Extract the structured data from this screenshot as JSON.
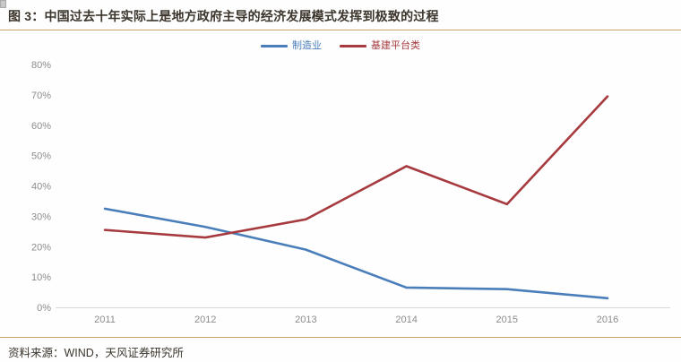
{
  "page": {
    "title": "图 3：中国过去十年实际上是地方政府主导的经济发展模式发挥到极致的过程",
    "source_note": "资料来源：WIND，天风证券研究所"
  },
  "colors": {
    "accent_rule": "#c9a469",
    "title_text": "#3b352c",
    "axis_text": "#8c8c8c",
    "axis_line": "#d8d8d8",
    "background": "#fefefe"
  },
  "chart_data": {
    "type": "line",
    "title": "",
    "xlabel": "",
    "ylabel": "",
    "categories": [
      "2011",
      "2012",
      "2013",
      "2014",
      "2015",
      "2016"
    ],
    "series": [
      {
        "name": "制造业",
        "color": "#4a7ebb",
        "values": [
          32.5,
          26.5,
          19,
          6.5,
          6,
          3
        ]
      },
      {
        "name": "基建平台类",
        "color": "#a63a3e",
        "values": [
          25.5,
          23,
          29,
          46.5,
          34,
          69.5
        ]
      }
    ],
    "ylim": [
      0,
      80
    ],
    "y_tick_step": 10,
    "y_tick_labels": [
      "0%",
      "10%",
      "20%",
      "30%",
      "40%",
      "50%",
      "60%",
      "70%",
      "80%"
    ],
    "grid": false,
    "legend_position": "top-center"
  }
}
